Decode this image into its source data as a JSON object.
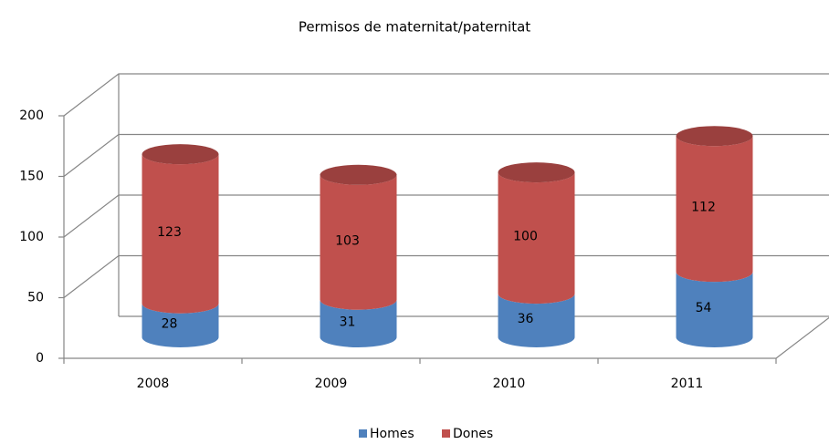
{
  "chart_data": {
    "type": "bar",
    "stacked": true,
    "title": "Permisos de maternitat/paternitat",
    "categories": [
      "2008",
      "2009",
      "2010",
      "2011"
    ],
    "series": [
      {
        "name": "Homes",
        "color": "#4f81bd",
        "values": [
          28,
          31,
          36,
          54
        ]
      },
      {
        "name": "Dones",
        "color": "#c0504d",
        "values": [
          123,
          103,
          100,
          112
        ]
      }
    ],
    "ylim": [
      0,
      200
    ],
    "yticks": [
      0,
      50,
      100,
      150,
      200
    ],
    "grid": true,
    "legend": "bottom"
  }
}
